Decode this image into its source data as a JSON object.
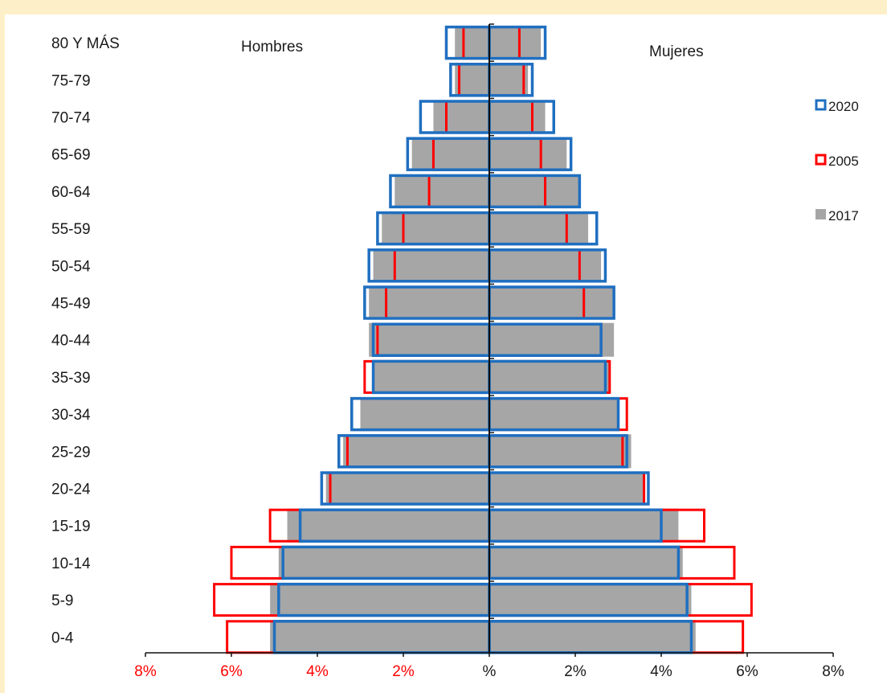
{
  "chart_data": {
    "type": "bar",
    "subtype": "population-pyramid",
    "categories": [
      "80 Y MÁS",
      "75-79",
      "70-74",
      "65-69",
      "60-64",
      "55-59",
      "50-54",
      "45-49",
      "40-44",
      "35-39",
      "30-34",
      "25-29",
      "20-24",
      "15-19",
      "10-14",
      "5-9",
      "0-4"
    ],
    "left_label": "Hombres",
    "right_label": "Mujeres",
    "series": [
      {
        "name": "2017",
        "color": "#a6a6a6",
        "style": "filled",
        "men": [
          0.8,
          0.8,
          1.3,
          1.8,
          2.2,
          2.5,
          2.7,
          2.8,
          2.8,
          2.7,
          3.0,
          3.4,
          3.8,
          4.7,
          4.9,
          5.1,
          5.1
        ],
        "women": [
          1.2,
          0.9,
          1.3,
          1.8,
          2.1,
          2.3,
          2.6,
          2.9,
          2.9,
          2.8,
          3.0,
          3.3,
          3.6,
          4.4,
          4.5,
          4.7,
          4.8
        ]
      },
      {
        "name": "2005",
        "color": "#ff0000",
        "style": "outline",
        "men": [
          0.6,
          0.7,
          1.0,
          1.3,
          1.4,
          2.0,
          2.2,
          2.4,
          2.6,
          2.9,
          3.2,
          3.3,
          3.7,
          5.1,
          6.0,
          6.4,
          6.1
        ],
        "women": [
          0.7,
          0.8,
          1.0,
          1.2,
          1.3,
          1.8,
          2.1,
          2.2,
          2.6,
          2.8,
          3.2,
          3.1,
          3.6,
          5.0,
          5.7,
          6.1,
          5.9
        ]
      },
      {
        "name": "2020",
        "color": "#1f6fc0",
        "style": "outline",
        "men": [
          1.0,
          0.9,
          1.6,
          1.9,
          2.3,
          2.6,
          2.8,
          2.9,
          2.7,
          2.7,
          3.2,
          3.5,
          3.9,
          4.4,
          4.8,
          4.9,
          5.0
        ],
        "women": [
          1.3,
          1.0,
          1.5,
          1.9,
          2.1,
          2.5,
          2.7,
          2.9,
          2.6,
          2.7,
          3.0,
          3.2,
          3.7,
          4.0,
          4.4,
          4.6,
          4.7
        ]
      }
    ],
    "x_ticks": [
      {
        "value": -8,
        "label": "8%"
      },
      {
        "value": -6,
        "label": "6%"
      },
      {
        "value": -4,
        "label": "4%"
      },
      {
        "value": -2,
        "label": "2%"
      },
      {
        "value": 0,
        "label": "%"
      },
      {
        "value": 2,
        "label": "2%"
      },
      {
        "value": 4,
        "label": "4%"
      },
      {
        "value": 6,
        "label": "6%"
      },
      {
        "value": 8,
        "label": "8%"
      }
    ],
    "xlim": [
      -8,
      8
    ],
    "left_tick_color": "#ff0000",
    "right_tick_color": "#1a1a1a",
    "legend": {
      "placement": "right",
      "items": [
        {
          "label": "2020",
          "color": "#1f6fc0",
          "style": "outline"
        },
        {
          "label": "2005",
          "color": "#ff0000",
          "style": "outline"
        },
        {
          "label": "2017",
          "color": "#a6a6a6",
          "style": "filled"
        }
      ]
    },
    "grid": false
  }
}
